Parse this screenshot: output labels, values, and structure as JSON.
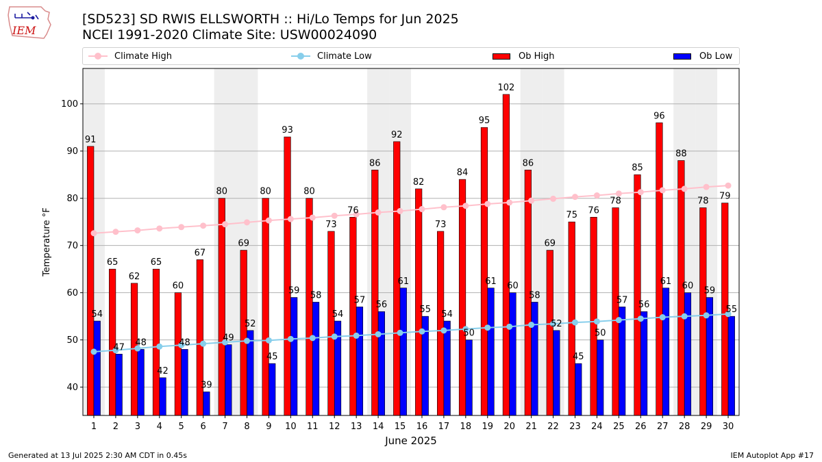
{
  "header": {
    "logo_text": "IEM",
    "title_line1": "[SD523] SD RWIS ELLSWORTH :: Hi/Lo Temps for Jun 2025",
    "title_line2": "NCEI 1991-2020 Climate Site: USW00024090"
  },
  "legend": {
    "climate_high": "Climate High",
    "climate_low": "Climate Low",
    "ob_high": "Ob High",
    "ob_low": "Ob Low"
  },
  "footer": {
    "generated": "Generated at 13 Jul 2025 2:30 AM CDT in 0.45s",
    "app": "IEM Autoplot App #17"
  },
  "colors": {
    "ob_high": "#ff0000",
    "ob_low": "#0000ff",
    "climate_high": "#ffc0cb",
    "climate_low": "#87ceeb",
    "weekend_shade": "#eeeeee"
  },
  "chart_data": {
    "type": "bar",
    "title": "[SD523] SD RWIS ELLSWORTH :: Hi/Lo Temps for Jun 2025",
    "xlabel": "June 2025",
    "ylabel": "Temperature °F",
    "ylim": [
      34,
      107.5
    ],
    "yticks": [
      40,
      50,
      60,
      70,
      80,
      90,
      100
    ],
    "grid": "horizontal",
    "legend_position": "top",
    "shaded_weekend_days": [
      1,
      7,
      8,
      14,
      15,
      21,
      22,
      28,
      29
    ],
    "categories": [
      "1",
      "2",
      "3",
      "4",
      "5",
      "6",
      "7",
      "8",
      "9",
      "10",
      "11",
      "12",
      "13",
      "14",
      "15",
      "16",
      "17",
      "18",
      "19",
      "20",
      "21",
      "22",
      "23",
      "24",
      "25",
      "26",
      "27",
      "28",
      "29",
      "30"
    ],
    "series": [
      {
        "name": "Ob High",
        "kind": "bar",
        "values": [
          91,
          65,
          62,
          65,
          60,
          67,
          80,
          69,
          80,
          93,
          80,
          73,
          76,
          86,
          92,
          82,
          73,
          84,
          95,
          102,
          86,
          69,
          75,
          76,
          78,
          85,
          96,
          88,
          78,
          79
        ]
      },
      {
        "name": "Ob Low",
        "kind": "bar",
        "values": [
          54,
          47,
          48,
          42,
          48,
          39,
          49,
          52,
          45,
          59,
          58,
          54,
          57,
          56,
          61,
          55,
          54,
          50,
          61,
          60,
          58,
          52,
          45,
          50,
          57,
          56,
          61,
          60,
          59,
          55
        ]
      },
      {
        "name": "Climate High",
        "kind": "line",
        "values": [
          72.6,
          72.9,
          73.2,
          73.6,
          73.9,
          74.2,
          74.5,
          74.9,
          75.3,
          75.6,
          75.9,
          76.3,
          76.6,
          77.0,
          77.3,
          77.7,
          78.1,
          78.4,
          78.8,
          79.1,
          79.5,
          79.9,
          80.3,
          80.6,
          81.0,
          81.3,
          81.7,
          82.0,
          82.4,
          82.7
        ]
      },
      {
        "name": "Climate Low",
        "kind": "line",
        "values": [
          47.5,
          47.8,
          48.2,
          48.6,
          48.9,
          49.2,
          49.5,
          49.8,
          49.9,
          50.2,
          50.4,
          50.7,
          50.9,
          51.2,
          51.5,
          51.8,
          52.0,
          52.3,
          52.6,
          52.8,
          53.2,
          53.4,
          53.7,
          53.9,
          54.2,
          54.5,
          54.8,
          55.0,
          55.2,
          55.5
        ]
      }
    ]
  }
}
